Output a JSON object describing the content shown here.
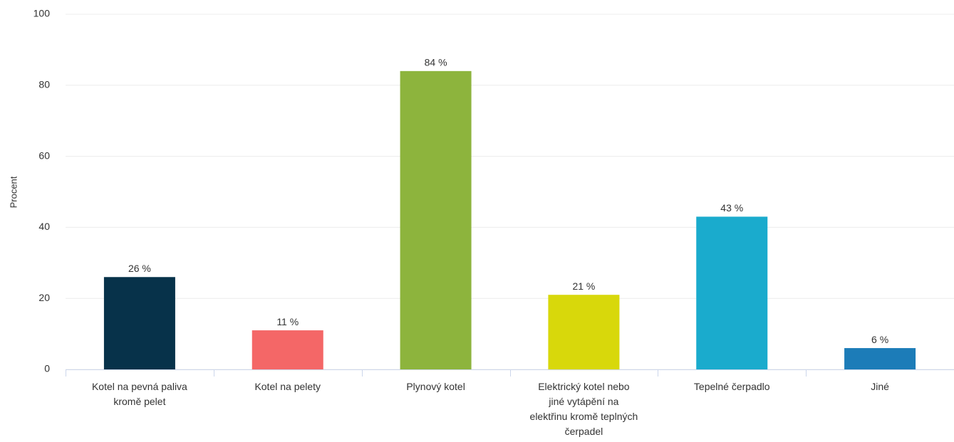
{
  "chart_data": {
    "type": "bar",
    "y_label": "Procent",
    "categories": [
      "Kotel na pevná paliva kromě pelet",
      "Kotel na pelety",
      "Plynový kotel",
      "Elektrický kotel nebo jiné vytápění na elektřinu kromě teplných čerpadel",
      "Tepelné čerpadlo",
      "Jiné"
    ],
    "values": [
      26,
      11,
      84,
      21,
      43,
      6
    ],
    "value_labels": [
      "26 %",
      "11 %",
      "84 %",
      "21 %",
      "43 %",
      "6 %"
    ],
    "colors": [
      "#07324a",
      "#f46767",
      "#8db43d",
      "#d8d80b",
      "#1aabcd",
      "#1c7cb8"
    ],
    "ylim": [
      0,
      100
    ],
    "yticks": [
      0,
      20,
      40,
      60,
      80,
      100
    ],
    "grid": true
  }
}
